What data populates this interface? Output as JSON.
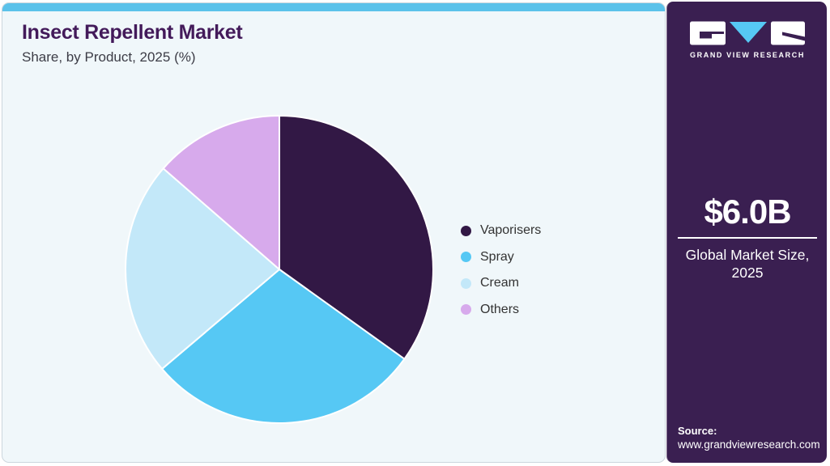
{
  "header": {
    "title": "Insect Repellent Market",
    "subtitle": "Share, by Product, 2025 (%)"
  },
  "chart_data": {
    "type": "pie",
    "title": "Insect Repellent Market Share, by Product, 2025 (%)",
    "categories": [
      "Vaporisers",
      "Spray",
      "Cream",
      "Others"
    ],
    "values": [
      34.9,
      28.9,
      22.6,
      13.6
    ],
    "unit": "%",
    "colors": [
      "#321845",
      "#56c8f4",
      "#c3e8f9",
      "#d7aaec"
    ],
    "start_angle_deg": 0,
    "direction": "clockwise",
    "legend_position": "right",
    "data_labels_shown": false
  },
  "sidebar": {
    "logo_brand": "GRAND VIEW RESEARCH",
    "market_size_value": "$6.0B",
    "market_size_label_line1": "Global Market Size,",
    "market_size_label_line2": "2025",
    "source_label": "Source:",
    "source_url": "www.grandviewresearch.com"
  },
  "colors": {
    "accent_topbar": "#5bc2ea",
    "sidebar_bg": "#3a1f51",
    "card_bg": "#f0f7fa",
    "title_text": "#431a5a",
    "body_text": "#333333",
    "logo_v_cyan": "#56c8f4"
  }
}
